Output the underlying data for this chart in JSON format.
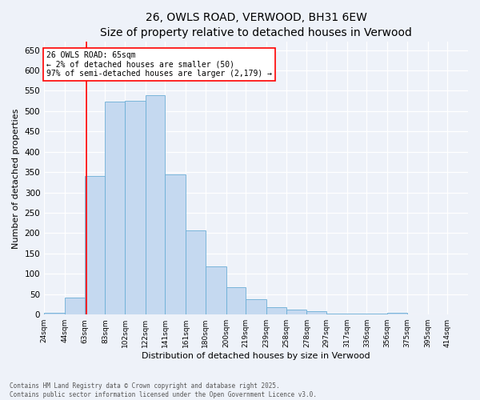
{
  "title": "26, OWLS ROAD, VERWOOD, BH31 6EW",
  "subtitle": "Size of property relative to detached houses in Verwood",
  "xlabel": "Distribution of detached houses by size in Verwood",
  "ylabel": "Number of detached properties",
  "bin_labels": [
    "24sqm",
    "44sqm",
    "63sqm",
    "83sqm",
    "102sqm",
    "122sqm",
    "141sqm",
    "161sqm",
    "180sqm",
    "200sqm",
    "219sqm",
    "239sqm",
    "258sqm",
    "278sqm",
    "297sqm",
    "317sqm",
    "336sqm",
    "356sqm",
    "375sqm",
    "395sqm",
    "414sqm"
  ],
  "bins": [
    24,
    44,
    63,
    83,
    102,
    122,
    141,
    161,
    180,
    200,
    219,
    239,
    258,
    278,
    297,
    317,
    336,
    356,
    375,
    395,
    414,
    434
  ],
  "heights": [
    5,
    42,
    340,
    523,
    525,
    540,
    345,
    207,
    118,
    67,
    37,
    18,
    12,
    8,
    2,
    2,
    2,
    5,
    0,
    0,
    0
  ],
  "bar_color": "#c5d9f0",
  "bar_edge_color": "#6baed6",
  "vline_x": 65,
  "vline_color": "red",
  "annotation_text": "26 OWLS ROAD: 65sqm\n← 2% of detached houses are smaller (50)\n97% of semi-detached houses are larger (2,179) →",
  "ylim": [
    0,
    670
  ],
  "yticks": [
    0,
    50,
    100,
    150,
    200,
    250,
    300,
    350,
    400,
    450,
    500,
    550,
    600,
    650
  ],
  "footer1": "Contains HM Land Registry data © Crown copyright and database right 2025.",
  "footer2": "Contains public sector information licensed under the Open Government Licence v3.0.",
  "bg_color": "#eef2f9",
  "title_fontsize": 10,
  "subtitle_fontsize": 9,
  "ylabel_fontsize": 8,
  "xlabel_fontsize": 8
}
